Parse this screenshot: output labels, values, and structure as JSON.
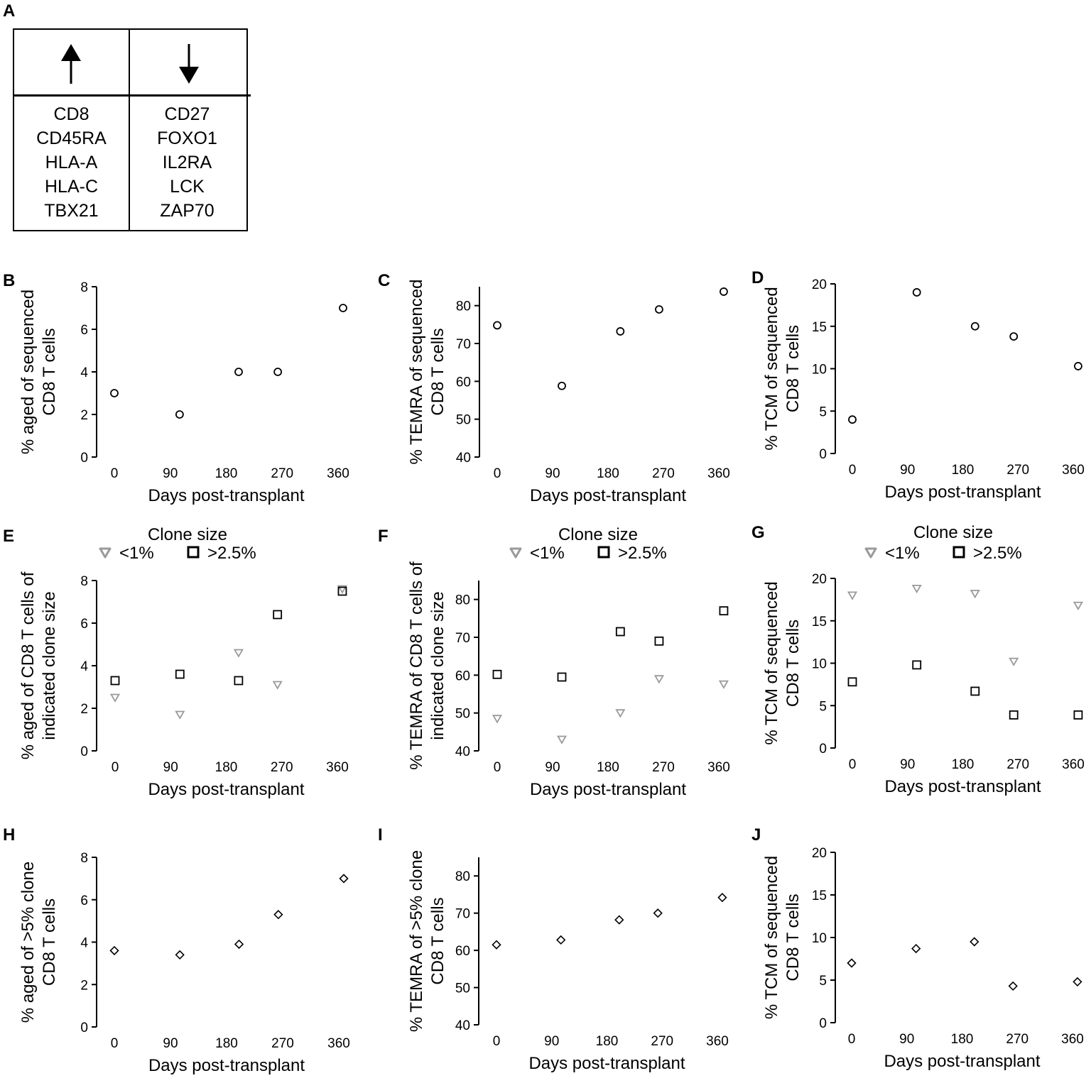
{
  "panel_A": {
    "letter": "A",
    "up_icon": "arrow-up-icon",
    "down_icon": "arrow-down-icon",
    "up_genes": [
      "CD8",
      "CD45RA",
      "HLA-A",
      "HLA-C",
      "TBX21"
    ],
    "down_genes": [
      "CD27",
      "FOXO1",
      "IL2RA",
      "LCK",
      "ZAP70"
    ]
  },
  "chart_data": [
    {
      "panel": "B",
      "type": "scatter",
      "marker": "circle",
      "xlabel": "Days post-transplant",
      "ylabel": [
        "% aged of sequenced",
        "CD8 T cells"
      ],
      "xticks": [
        0,
        90,
        180,
        270,
        360
      ],
      "yticks": [
        0,
        2,
        4,
        6,
        8
      ],
      "ylim": [
        0,
        8
      ],
      "series": [
        {
          "name": "",
          "x": [
            0,
            105,
            200,
            263,
            368
          ],
          "y": [
            3,
            2,
            4,
            4,
            7
          ],
          "color": "#000000"
        }
      ]
    },
    {
      "panel": "C",
      "type": "scatter",
      "marker": "circle",
      "xlabel": "Days post-transplant",
      "ylabel": [
        "% TEMRA of sequenced",
        "CD8 T cells"
      ],
      "xticks": [
        0,
        90,
        180,
        270,
        360
      ],
      "yticks": [
        40,
        50,
        60,
        70,
        80
      ],
      "ylim": [
        40,
        85
      ],
      "series": [
        {
          "name": "",
          "x": [
            0,
            105,
            200,
            263,
            368
          ],
          "y": [
            74.8,
            58.8,
            73.2,
            79,
            83.7
          ],
          "color": "#000000"
        }
      ]
    },
    {
      "panel": "D",
      "type": "scatter",
      "marker": "circle",
      "xlabel": "Days post-transplant",
      "ylabel": [
        "% TCM of sequenced",
        "CD8 T cells"
      ],
      "xticks": [
        0,
        90,
        180,
        270,
        360
      ],
      "yticks": [
        0,
        5,
        10,
        15,
        20
      ],
      "ylim": [
        0,
        20
      ],
      "series": [
        {
          "name": "",
          "x": [
            0,
            105,
            200,
            263,
            368
          ],
          "y": [
            4,
            19,
            15,
            13.8,
            10.3
          ],
          "color": "#000000"
        }
      ]
    },
    {
      "panel": "E",
      "type": "scatter",
      "xlabel": "Days post-transplant",
      "ylabel": [
        "% aged of CD8 T cells of",
        "indicated clone size"
      ],
      "xticks": [
        0,
        90,
        180,
        270,
        360
      ],
      "yticks": [
        0,
        2,
        4,
        6,
        8
      ],
      "ylim": [
        0,
        8
      ],
      "legend_title": "Clone size",
      "series": [
        {
          "name": "<1%",
          "marker": "triangle-down",
          "color": "#9a9a9a",
          "x": [
            0,
            105,
            200,
            263,
            368
          ],
          "y": [
            2.5,
            1.7,
            4.6,
            3.1,
            7.6
          ]
        },
        {
          "name": ">2.5%",
          "marker": "square",
          "color": "#000000",
          "x": [
            0,
            105,
            200,
            263,
            368
          ],
          "y": [
            3.3,
            3.6,
            3.3,
            6.4,
            7.5
          ]
        }
      ]
    },
    {
      "panel": "F",
      "type": "scatter",
      "xlabel": "Days post-transplant",
      "ylabel": [
        "% TEMRA of CD8 T cells of",
        "indicated clone size"
      ],
      "xticks": [
        0,
        90,
        180,
        270,
        360
      ],
      "yticks": [
        40,
        50,
        60,
        70,
        80
      ],
      "ylim": [
        40,
        85
      ],
      "legend_title": "Clone size",
      "series": [
        {
          "name": "<1%",
          "marker": "triangle-down",
          "color": "#9a9a9a",
          "x": [
            0,
            105,
            200,
            263,
            368
          ],
          "y": [
            48.5,
            43,
            50,
            59,
            57.6
          ]
        },
        {
          "name": ">2.5%",
          "marker": "square",
          "color": "#000000",
          "x": [
            0,
            105,
            200,
            263,
            368
          ],
          "y": [
            60.2,
            59.5,
            71.5,
            69,
            77
          ]
        }
      ]
    },
    {
      "panel": "G",
      "type": "scatter",
      "xlabel": "Days post-transplant",
      "ylabel": [
        "% TCM of sequenced",
        "CD8 T cells"
      ],
      "xticks": [
        0,
        90,
        180,
        270,
        360
      ],
      "yticks": [
        0,
        5,
        10,
        15,
        20
      ],
      "ylim": [
        0,
        20
      ],
      "legend_title": "Clone size",
      "series": [
        {
          "name": "<1%",
          "marker": "triangle-down",
          "color": "#9a9a9a",
          "x": [
            0,
            105,
            200,
            263,
            368
          ],
          "y": [
            18,
            18.8,
            18.2,
            10.2,
            16.8
          ]
        },
        {
          "name": ">2.5%",
          "marker": "square",
          "color": "#000000",
          "x": [
            0,
            105,
            200,
            263,
            368
          ],
          "y": [
            7.8,
            9.8,
            6.7,
            3.9,
            3.9
          ]
        }
      ]
    },
    {
      "panel": "H",
      "type": "scatter",
      "marker": "diamond",
      "xlabel": "Days post-transplant",
      "ylabel": [
        "% aged of >5% clone",
        "CD8 T cells"
      ],
      "xticks": [
        0,
        90,
        180,
        270,
        360
      ],
      "yticks": [
        0,
        2,
        4,
        6,
        8
      ],
      "ylim": [
        0,
        8
      ],
      "series": [
        {
          "name": "",
          "x": [
            0,
            105,
            200,
            263,
            368
          ],
          "y": [
            3.6,
            3.4,
            3.9,
            5.3,
            7
          ],
          "color": "#000000"
        }
      ]
    },
    {
      "panel": "I",
      "type": "scatter",
      "marker": "diamond",
      "xlabel": "Days post-transplant",
      "ylabel": [
        "% TEMRA of >5% clone",
        "CD8 T cells"
      ],
      "xticks": [
        0,
        90,
        180,
        270,
        360
      ],
      "yticks": [
        40,
        50,
        60,
        70,
        80
      ],
      "ylim": [
        40,
        85
      ],
      "series": [
        {
          "name": "",
          "x": [
            0,
            105,
            200,
            263,
            368
          ],
          "y": [
            61.5,
            62.8,
            68.2,
            70,
            74.2
          ],
          "color": "#000000"
        }
      ]
    },
    {
      "panel": "J",
      "type": "scatter",
      "marker": "diamond",
      "xlabel": "Days post-transplant",
      "ylabel": [
        "% TCM of sequenced",
        "CD8 T cells"
      ],
      "xticks": [
        0,
        90,
        180,
        270,
        360
      ],
      "yticks": [
        0,
        5,
        10,
        15,
        20
      ],
      "ylim": [
        0,
        20
      ],
      "series": [
        {
          "name": "",
          "x": [
            0,
            105,
            200,
            263,
            368
          ],
          "y": [
            7,
            8.7,
            9.5,
            4.3,
            4.8
          ],
          "color": "#000000"
        }
      ]
    }
  ]
}
